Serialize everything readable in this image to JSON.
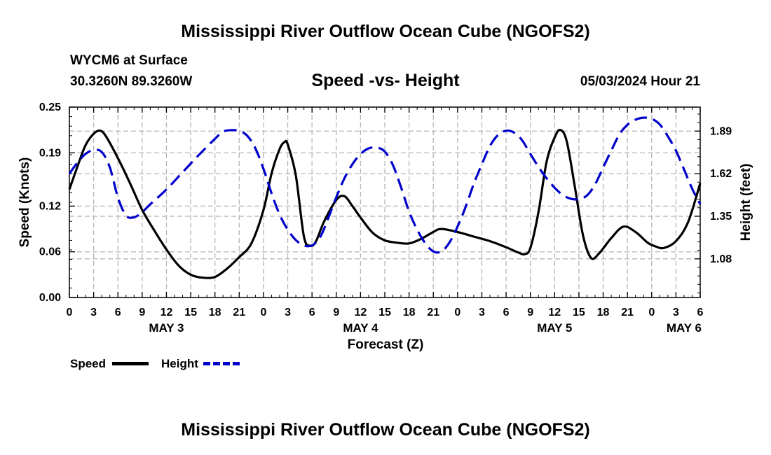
{
  "header": {
    "title": "Mississippi River Outflow Ocean Cube (NGOFS2)",
    "station": "WYCM6 at Surface",
    "coords": "30.3260N  89.3260W",
    "subtitle": "Speed -vs- Height",
    "datetime": "05/03/2024 Hour 21"
  },
  "footer": {
    "title": "Mississippi River Outflow Ocean Cube (NGOFS2)"
  },
  "chart_data": {
    "type": "line",
    "title": "Speed -vs- Height",
    "xlabel": "Forecast (Z)",
    "ylabel_left": "Speed (Knots)",
    "ylabel_right": "Height (feet)",
    "x_unit": "hours from 00Z May 3",
    "xlim": [
      0,
      78
    ],
    "ylim_left": [
      0.0,
      0.25
    ],
    "ylim_right": [
      0.835,
      2.042
    ],
    "x_ticks": [
      0,
      3,
      6,
      9,
      12,
      15,
      18,
      21,
      24,
      27,
      30,
      33,
      36,
      39,
      42,
      45,
      48,
      51,
      54,
      57,
      60,
      63,
      66,
      69,
      72,
      75,
      78
    ],
    "x_tick_labels": [
      "0",
      "3",
      "6",
      "9",
      "12",
      "15",
      "18",
      "21",
      "0",
      "3",
      "6",
      "9",
      "12",
      "15",
      "18",
      "21",
      "0",
      "3",
      "6",
      "9",
      "12",
      "15",
      "18",
      "21",
      "0",
      "3",
      "6"
    ],
    "day_labels": [
      {
        "x": 12,
        "label": "MAY 3"
      },
      {
        "x": 36,
        "label": "MAY 4"
      },
      {
        "x": 60,
        "label": "MAY 5"
      },
      {
        "x": 76,
        "label": "MAY 6"
      }
    ],
    "left_ticks": [
      0.0,
      0.06,
      0.12,
      0.19,
      0.25
    ],
    "left_tick_labels": [
      "0.00",
      "0.06",
      "0.12",
      "0.19",
      "0.25"
    ],
    "right_ticks": [
      1.08,
      1.35,
      1.62,
      1.89
    ],
    "right_tick_labels": [
      "1.08",
      "1.35",
      "1.62",
      "1.89"
    ],
    "grid": true,
    "legend": [
      {
        "label": "Speed",
        "color": "#000000",
        "style": "solid"
      },
      {
        "label": "Height",
        "color": "#0000cc",
        "style": "dashed"
      }
    ],
    "series": [
      {
        "name": "Speed",
        "axis": "left",
        "color": "#000000",
        "dash": false,
        "points": [
          [
            0,
            0.142
          ],
          [
            1,
            0.172
          ],
          [
            2,
            0.2
          ],
          [
            3,
            0.215
          ],
          [
            3.8,
            0.219
          ],
          [
            4.5,
            0.212
          ],
          [
            6,
            0.183
          ],
          [
            7.5,
            0.15
          ],
          [
            9,
            0.115
          ],
          [
            10.5,
            0.088
          ],
          [
            12,
            0.063
          ],
          [
            13.5,
            0.042
          ],
          [
            15,
            0.03
          ],
          [
            16.5,
            0.026
          ],
          [
            18,
            0.027
          ],
          [
            19.5,
            0.038
          ],
          [
            21,
            0.053
          ],
          [
            22.5,
            0.071
          ],
          [
            24,
            0.115
          ],
          [
            25,
            0.163
          ],
          [
            26,
            0.195
          ],
          [
            26.6,
            0.204
          ],
          [
            27,
            0.201
          ],
          [
            28,
            0.16
          ],
          [
            29,
            0.08
          ],
          [
            29.8,
            0.068
          ],
          [
            30.5,
            0.074
          ],
          [
            31.5,
            0.1
          ],
          [
            33,
            0.128
          ],
          [
            34,
            0.133
          ],
          [
            35,
            0.12
          ],
          [
            36,
            0.105
          ],
          [
            37.5,
            0.085
          ],
          [
            39,
            0.075
          ],
          [
            40.5,
            0.072
          ],
          [
            42,
            0.071
          ],
          [
            43.5,
            0.077
          ],
          [
            45,
            0.086
          ],
          [
            46,
            0.09
          ],
          [
            48,
            0.086
          ],
          [
            50,
            0.08
          ],
          [
            52,
            0.074
          ],
          [
            54,
            0.066
          ],
          [
            55.5,
            0.059
          ],
          [
            56.3,
            0.057
          ],
          [
            57,
            0.065
          ],
          [
            58,
            0.112
          ],
          [
            59,
            0.178
          ],
          [
            60,
            0.21
          ],
          [
            60.7,
            0.22
          ],
          [
            61.5,
            0.205
          ],
          [
            62.5,
            0.145
          ],
          [
            63.5,
            0.082
          ],
          [
            64.5,
            0.052
          ],
          [
            65.5,
            0.058
          ],
          [
            67,
            0.078
          ],
          [
            68.5,
            0.093
          ],
          [
            70,
            0.086
          ],
          [
            71.5,
            0.072
          ],
          [
            72.5,
            0.067
          ],
          [
            73.5,
            0.065
          ],
          [
            75,
            0.074
          ],
          [
            76.5,
            0.099
          ],
          [
            78,
            0.15
          ]
        ]
      },
      {
        "name": "Height",
        "axis": "right",
        "color": "#0000cc",
        "dash": true,
        "points": [
          [
            0,
            1.62
          ],
          [
            1,
            1.69
          ],
          [
            2,
            1.745
          ],
          [
            3,
            1.77
          ],
          [
            4,
            1.757
          ],
          [
            5,
            1.66
          ],
          [
            6,
            1.47
          ],
          [
            7,
            1.355
          ],
          [
            8,
            1.343
          ],
          [
            9,
            1.376
          ],
          [
            10,
            1.426
          ],
          [
            12,
            1.52
          ],
          [
            14,
            1.629
          ],
          [
            16,
            1.738
          ],
          [
            18,
            1.841
          ],
          [
            19,
            1.886
          ],
          [
            20,
            1.896
          ],
          [
            21,
            1.891
          ],
          [
            22,
            1.86
          ],
          [
            23,
            1.78
          ],
          [
            24,
            1.65
          ],
          [
            25,
            1.495
          ],
          [
            26,
            1.36
          ],
          [
            27,
            1.265
          ],
          [
            28,
            1.199
          ],
          [
            29,
            1.165
          ],
          [
            30,
            1.165
          ],
          [
            31,
            1.217
          ],
          [
            32,
            1.337
          ],
          [
            33,
            1.47
          ],
          [
            34,
            1.59
          ],
          [
            35,
            1.68
          ],
          [
            36,
            1.745
          ],
          [
            37,
            1.78
          ],
          [
            38,
            1.786
          ],
          [
            39,
            1.76
          ],
          [
            40,
            1.675
          ],
          [
            41,
            1.535
          ],
          [
            42,
            1.38
          ],
          [
            43,
            1.265
          ],
          [
            44,
            1.18
          ],
          [
            45,
            1.127
          ],
          [
            46,
            1.127
          ],
          [
            47,
            1.184
          ],
          [
            48,
            1.285
          ],
          [
            49,
            1.41
          ],
          [
            50,
            1.555
          ],
          [
            51,
            1.68
          ],
          [
            52,
            1.795
          ],
          [
            53,
            1.865
          ],
          [
            54,
            1.892
          ],
          [
            55,
            1.88
          ],
          [
            56,
            1.83
          ],
          [
            57,
            1.745
          ],
          [
            58,
            1.663
          ],
          [
            59,
            1.591
          ],
          [
            60,
            1.531
          ],
          [
            61,
            1.485
          ],
          [
            62,
            1.461
          ],
          [
            63,
            1.458
          ],
          [
            64,
            1.482
          ],
          [
            65,
            1.552
          ],
          [
            66,
            1.659
          ],
          [
            67,
            1.766
          ],
          [
            68,
            1.868
          ],
          [
            69,
            1.93
          ],
          [
            70,
            1.962
          ],
          [
            71,
            1.975
          ],
          [
            72,
            1.968
          ],
          [
            73,
            1.932
          ],
          [
            74,
            1.857
          ],
          [
            75,
            1.766
          ],
          [
            76,
            1.647
          ],
          [
            77,
            1.525
          ],
          [
            78,
            1.426
          ]
        ]
      }
    ]
  }
}
